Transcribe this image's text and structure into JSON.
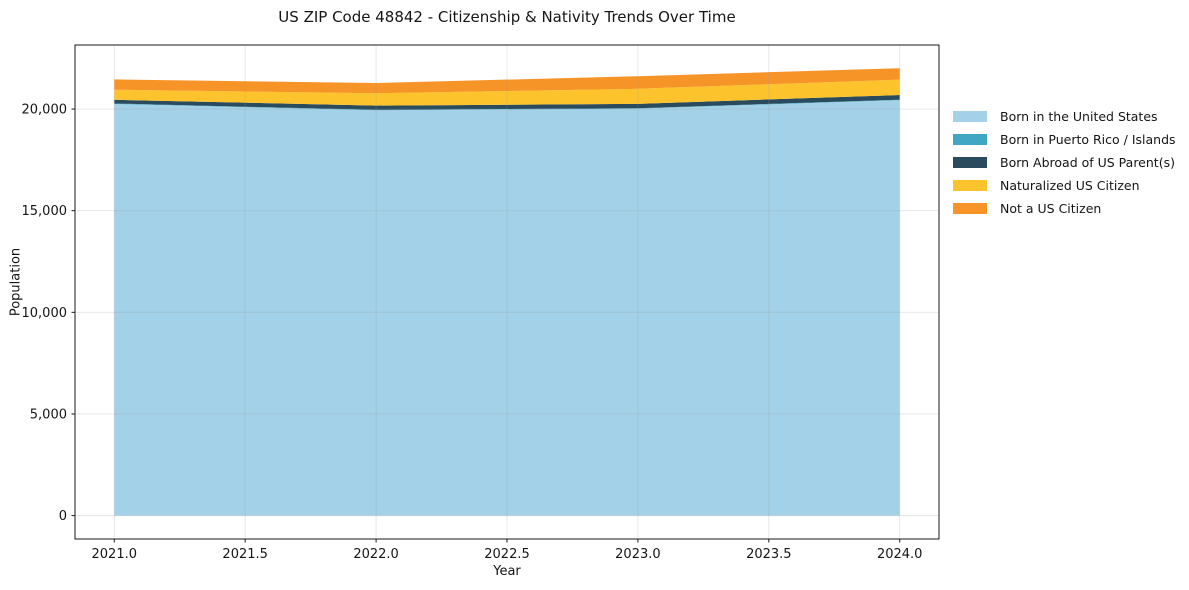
{
  "title": "US ZIP Code 48842 - Citizenship & Nativity Trends Over Time",
  "chart_data": {
    "type": "area",
    "stacked": true,
    "title": "US ZIP Code 48842 - Citizenship & Nativity Trends Over Time",
    "xlabel": "Year",
    "ylabel": "Population",
    "x": [
      2021,
      2022,
      2023,
      2024
    ],
    "series": [
      {
        "name": "Born in the United States",
        "color": "#a3d1e8",
        "values": [
          20250,
          19940,
          20020,
          20440
        ]
      },
      {
        "name": "Born in Puerto Rico / Islands",
        "color": "#41a6c4",
        "values": [
          20,
          20,
          20,
          20
        ]
      },
      {
        "name": "Born Abroad of US Parent(s)",
        "color": "#2a4a5e",
        "values": [
          185,
          210,
          215,
          230
        ]
      },
      {
        "name": "Naturalized US Citizen",
        "color": "#fcc32d",
        "values": [
          495,
          610,
          740,
          760
        ]
      },
      {
        "name": "Not a US Citizen",
        "color": "#f79428",
        "values": [
          510,
          500,
          620,
          560
        ]
      }
    ],
    "x_ticks": [
      "2021.0",
      "2021.5",
      "2022.0",
      "2022.5",
      "2023.0",
      "2023.5",
      "2024.0"
    ],
    "x_tick_values": [
      2021,
      2021.5,
      2022,
      2022.5,
      2023,
      2023.5,
      2024
    ],
    "y_ticks": [
      "0",
      "5,000",
      "10,000",
      "15,000",
      "20,000"
    ],
    "y_tick_values": [
      0,
      5000,
      10000,
      15000,
      20000
    ],
    "xlim": [
      2020.85,
      2024.15
    ],
    "ylim": [
      -1150,
      23150
    ],
    "grid": true,
    "grid_color": "#999999",
    "grid_opacity": 0.25,
    "axis_color": "#1a1a1a",
    "legend_position": "right",
    "legend_frame": false
  }
}
